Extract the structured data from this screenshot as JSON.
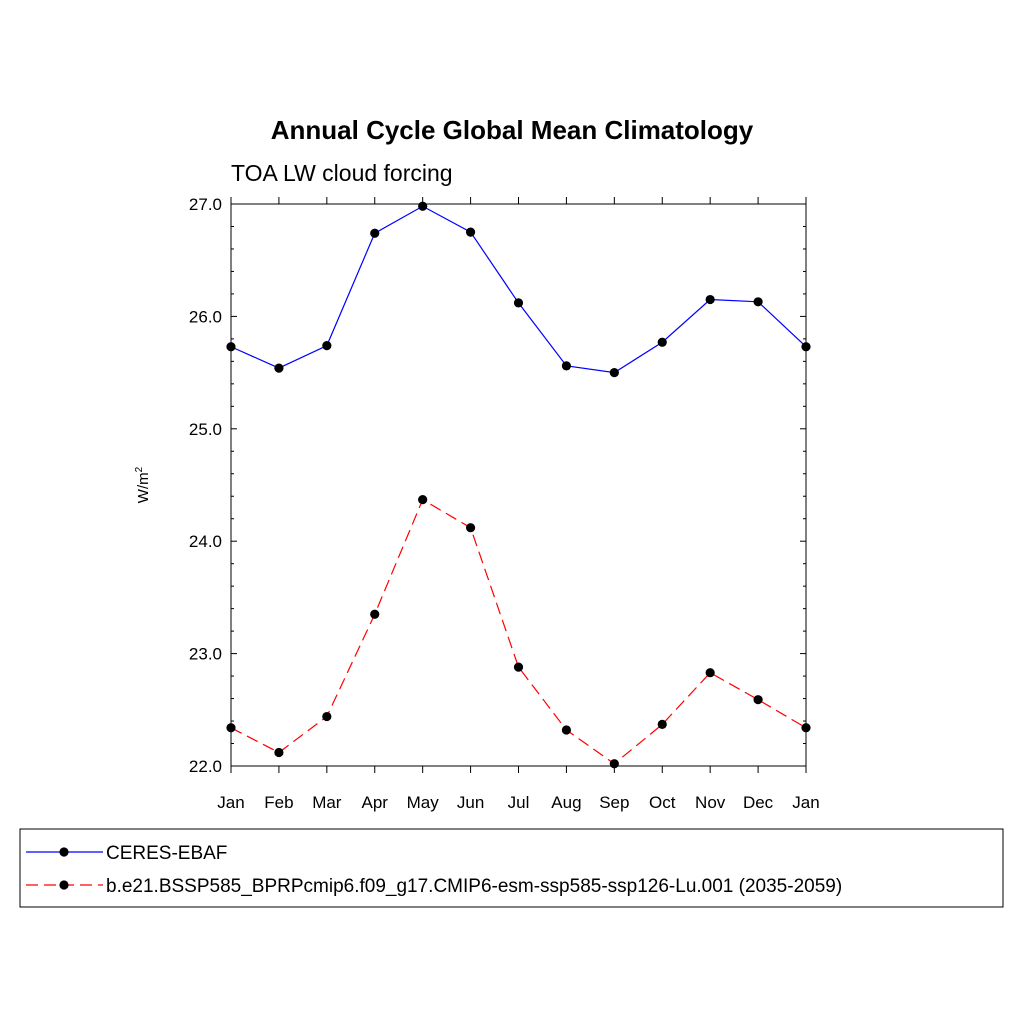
{
  "chart_data": {
    "type": "line",
    "title": "Annual Cycle Global Mean Climatology",
    "subtitle": "TOA LW cloud forcing",
    "ylabel_base": "W/m",
    "ylabel_sup": "2",
    "xlabel": "",
    "categories": [
      "Jan",
      "Feb",
      "Mar",
      "Apr",
      "May",
      "Jun",
      "Jul",
      "Aug",
      "Sep",
      "Oct",
      "Nov",
      "Dec",
      "Jan"
    ],
    "ylim": [
      22.0,
      27.0
    ],
    "yticks": [
      "22.0",
      "23.0",
      "24.0",
      "25.0",
      "26.0",
      "27.0"
    ],
    "series": [
      {
        "name": "CERES-EBAF",
        "color": "#0000ff",
        "dash": "solid",
        "values": [
          25.73,
          25.54,
          25.74,
          26.74,
          26.98,
          26.75,
          26.12,
          25.56,
          25.5,
          25.77,
          26.15,
          26.13,
          25.73
        ]
      },
      {
        "name": "b.e21.BSSP585_BPRPcmip6.f09_g17.CMIP6-esm-ssp585-ssp126-Lu.001 (2035-2059)",
        "color": "#ff0000",
        "dash": "dashed",
        "values": [
          22.34,
          22.12,
          22.44,
          23.35,
          24.37,
          24.12,
          22.88,
          22.32,
          22.02,
          22.37,
          22.83,
          22.59,
          22.34
        ]
      }
    ]
  }
}
